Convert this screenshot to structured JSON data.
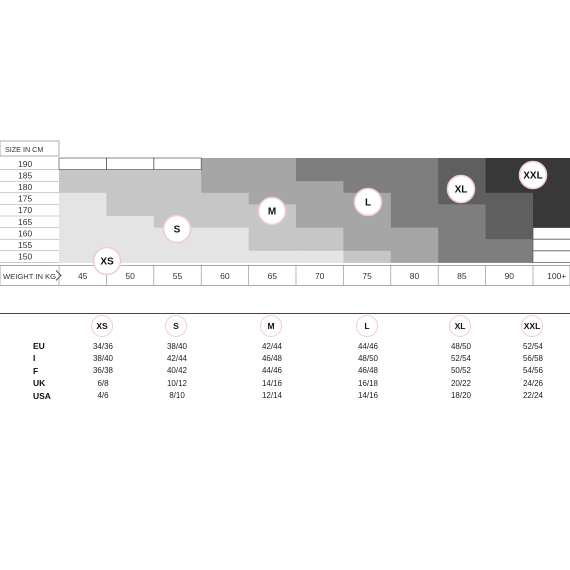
{
  "header": {
    "size_label": "SIZE IN CM",
    "weight_label": "WEIGHT IN KG"
  },
  "heights": [
    "190",
    "185",
    "180",
    "175",
    "170",
    "165",
    "160",
    "155",
    "150"
  ],
  "weights": [
    "45",
    "50",
    "55",
    "60",
    "65",
    "70",
    "75",
    "80",
    "85",
    "90",
    "100+"
  ],
  "zones": [
    {
      "label": "XS",
      "color": "#e4e4e4"
    },
    {
      "label": "S",
      "color": "#c6c6c6"
    },
    {
      "label": "M",
      "color": "#a6a6a6"
    },
    {
      "label": "L",
      "color": "#7e7e7e"
    },
    {
      "label": "XL",
      "color": "#5f5f5f"
    },
    {
      "label": "XXL",
      "color": "#383838"
    }
  ],
  "table": {
    "sizes": [
      "XS",
      "S",
      "M",
      "L",
      "XL",
      "XXL"
    ],
    "rows": [
      {
        "label": "EU",
        "values": [
          "34/36",
          "38/40",
          "42/44",
          "44/46",
          "48/50",
          "52/54"
        ]
      },
      {
        "label": "I",
        "values": [
          "38/40",
          "42/44",
          "46/48",
          "48/50",
          "52/54",
          "56/58"
        ]
      },
      {
        "label": "F",
        "values": [
          "36/38",
          "40/42",
          "44/46",
          "46/48",
          "50/52",
          "54/56"
        ]
      },
      {
        "label": "UK",
        "values": [
          "6/8",
          "10/12",
          "14/16",
          "16/18",
          "20/22",
          "24/26"
        ]
      },
      {
        "label": "USA",
        "values": [
          "4/6",
          "8/10",
          "12/14",
          "14/16",
          "18/20",
          "22/24"
        ]
      }
    ]
  }
}
